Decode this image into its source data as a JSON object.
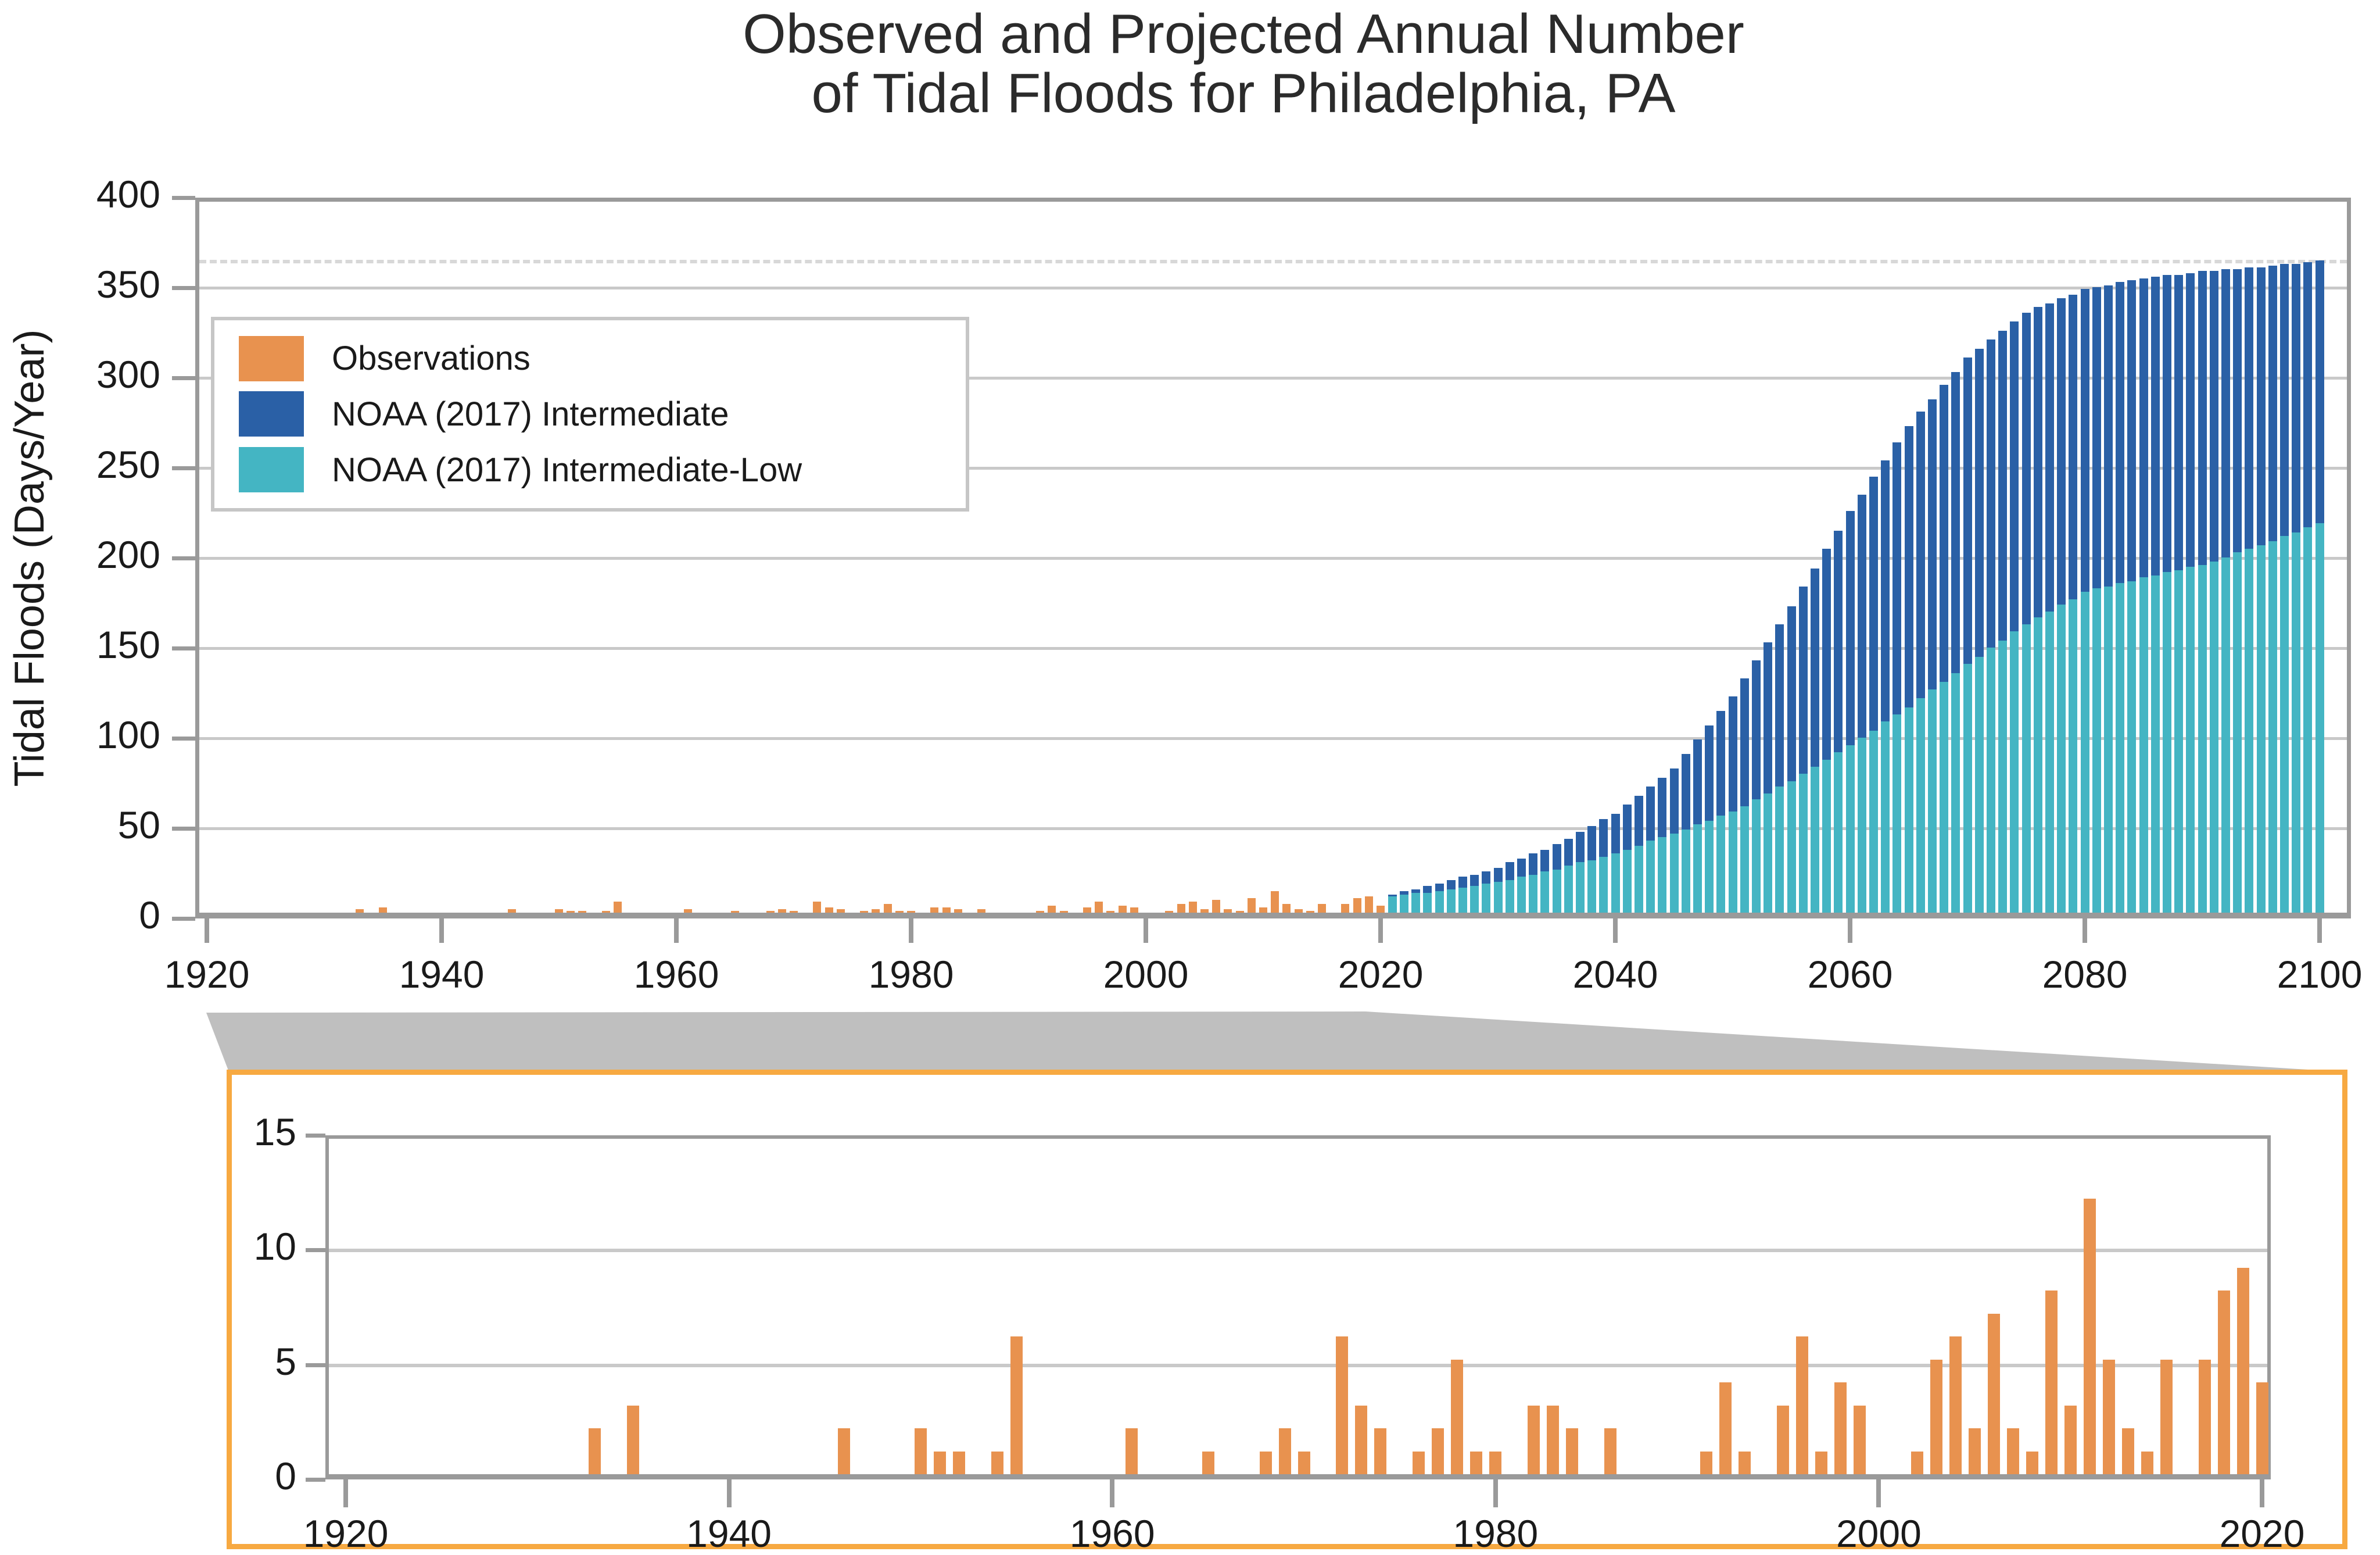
{
  "title": {
    "line1": "Observed and Projected Annual Number",
    "line2": "of Tidal Floods for Philadelphia, PA"
  },
  "colors": {
    "observations": "#e8924f",
    "intermediate": "#2a60a6",
    "intermediate_low": "#44b5c3",
    "axis": "#9a9a9a",
    "grid": "#c9c9c9",
    "dashed_reference": "#d8d8d8",
    "connector": "#bfbfbf",
    "inset_border": "#f7a941",
    "legend_border": "#c6c6c6"
  },
  "legend": {
    "items": [
      {
        "label": "Observations",
        "color": "#e8924f"
      },
      {
        "label": "NOAA (2017) Intermediate",
        "color": "#2a60a6"
      },
      {
        "label": "NOAA (2017) Intermediate-Low",
        "color": "#44b5c3"
      }
    ]
  },
  "main_chart": {
    "ylabel": "Tidal Floods (Days/Year)",
    "ytick_labels": [
      "0",
      "50",
      "100",
      "150",
      "200",
      "250",
      "300",
      "350",
      "400"
    ],
    "xtick_labels": [
      "1920",
      "1940",
      "1960",
      "1980",
      "2000",
      "2020",
      "2040",
      "2060",
      "2080",
      "2100"
    ]
  },
  "inset_chart": {
    "ytick_labels": [
      "0",
      "5",
      "10",
      "15"
    ],
    "xtick_labels": [
      "1920",
      "1940",
      "1960",
      "1980",
      "2000",
      "2020"
    ]
  },
  "chart_data": [
    {
      "type": "bar",
      "title": "Observed and Projected Annual Number of Tidal Floods for Philadelphia, PA",
      "xlabel": "",
      "ylabel": "Tidal Floods (Days/Year)",
      "xlim": [
        1919,
        2102.5
      ],
      "ylim": [
        0,
        400
      ],
      "yticks": [
        0,
        50,
        100,
        150,
        200,
        250,
        300,
        350,
        400
      ],
      "xticks": [
        1920,
        1940,
        1960,
        1980,
        2000,
        2020,
        2040,
        2060,
        2080,
        2100
      ],
      "reference_line": 365,
      "grid": "horizontal",
      "legend_position": "upper-left",
      "series": [
        {
          "name": "Observations",
          "years": [
            1933,
            1935,
            1946,
            1950,
            1951,
            1952,
            1954,
            1955,
            1961,
            1965,
            1968,
            1969,
            1970,
            1972,
            1973,
            1974,
            1976,
            1977,
            1978,
            1979,
            1980,
            1982,
            1983,
            1984,
            1986,
            1991,
            1992,
            1993,
            1995,
            1996,
            1997,
            1998,
            1999,
            2002,
            2003,
            2004,
            2005,
            2006,
            2007,
            2008,
            2009,
            2010,
            2011,
            2012,
            2013,
            2014,
            2015,
            2017,
            2018,
            2019,
            2020
          ],
          "values": [
            2,
            3,
            2,
            2,
            1,
            1,
            1,
            6,
            2,
            1,
            1,
            2,
            1,
            6,
            3,
            2,
            1,
            2,
            5,
            1,
            1,
            3,
            3,
            2,
            2,
            1,
            4,
            1,
            3,
            6,
            1,
            4,
            3,
            1,
            5,
            6,
            2,
            7,
            2,
            1,
            8,
            3,
            12,
            5,
            2,
            1,
            5,
            5,
            8,
            9,
            4
          ]
        },
        {
          "name": "NOAA (2017) Intermediate",
          "start_year": 2021,
          "values": [
            10,
            12,
            13,
            15,
            16,
            18,
            20,
            21,
            23,
            25,
            28,
            30,
            33,
            35,
            38,
            41,
            45,
            48,
            52,
            55,
            60,
            65,
            70,
            75,
            80,
            88,
            96,
            104,
            112,
            120,
            130,
            140,
            150,
            160,
            170,
            181,
            191,
            202,
            212,
            223,
            232,
            242,
            251,
            261,
            270,
            278,
            285,
            293,
            300,
            308,
            313,
            318,
            323,
            328,
            333,
            336,
            338,
            341,
            343,
            346,
            347,
            348,
            350,
            351,
            352,
            353,
            354,
            354,
            355,
            356,
            356,
            357,
            357,
            358,
            358,
            359,
            360,
            360,
            361,
            362
          ]
        },
        {
          "name": "NOAA (2017) Intermediate-Low",
          "start_year": 2021,
          "values": [
            9,
            10,
            11,
            11,
            12,
            13,
            14,
            15,
            16,
            17,
            18,
            20,
            21,
            23,
            24,
            26,
            28,
            29,
            31,
            33,
            35,
            37,
            40,
            42,
            44,
            46,
            49,
            51,
            54,
            56,
            59,
            63,
            66,
            70,
            73,
            77,
            81,
            85,
            89,
            93,
            97,
            101,
            106,
            110,
            114,
            119,
            124,
            128,
            133,
            138,
            142,
            147,
            151,
            156,
            160,
            164,
            167,
            171,
            174,
            178,
            180,
            181,
            183,
            184,
            186,
            187,
            189,
            190,
            192,
            193,
            195,
            197,
            200,
            202,
            204,
            206,
            209,
            211,
            214,
            216
          ]
        }
      ]
    },
    {
      "type": "bar",
      "title": "Observations detail (zoomed)",
      "xlim": [
        1918.9,
        2020.5
      ],
      "ylim": [
        0,
        15
      ],
      "yticks": [
        0,
        5,
        10,
        15
      ],
      "xticks": [
        1920,
        1940,
        1960,
        1980,
        2000,
        2020
      ],
      "grid": "horizontal",
      "series": [
        {
          "name": "Observations",
          "years": [
            1933,
            1935,
            1946,
            1950,
            1951,
            1952,
            1954,
            1955,
            1961,
            1965,
            1968,
            1969,
            1970,
            1972,
            1973,
            1974,
            1976,
            1977,
            1978,
            1979,
            1980,
            1982,
            1983,
            1984,
            1986,
            1991,
            1992,
            1993,
            1995,
            1996,
            1997,
            1998,
            1999,
            2002,
            2003,
            2004,
            2005,
            2006,
            2007,
            2008,
            2009,
            2010,
            2011,
            2012,
            2013,
            2014,
            2015,
            2017,
            2018,
            2019,
            2020
          ],
          "values": [
            2,
            3,
            2,
            2,
            1,
            1,
            1,
            6,
            2,
            1,
            1,
            2,
            1,
            6,
            3,
            2,
            1,
            2,
            5,
            1,
            1,
            3,
            3,
            2,
            2,
            1,
            4,
            1,
            3,
            6,
            1,
            4,
            3,
            1,
            5,
            6,
            2,
            7,
            2,
            1,
            8,
            3,
            12,
            5,
            2,
            1,
            5,
            5,
            8,
            9,
            4
          ]
        }
      ]
    }
  ]
}
